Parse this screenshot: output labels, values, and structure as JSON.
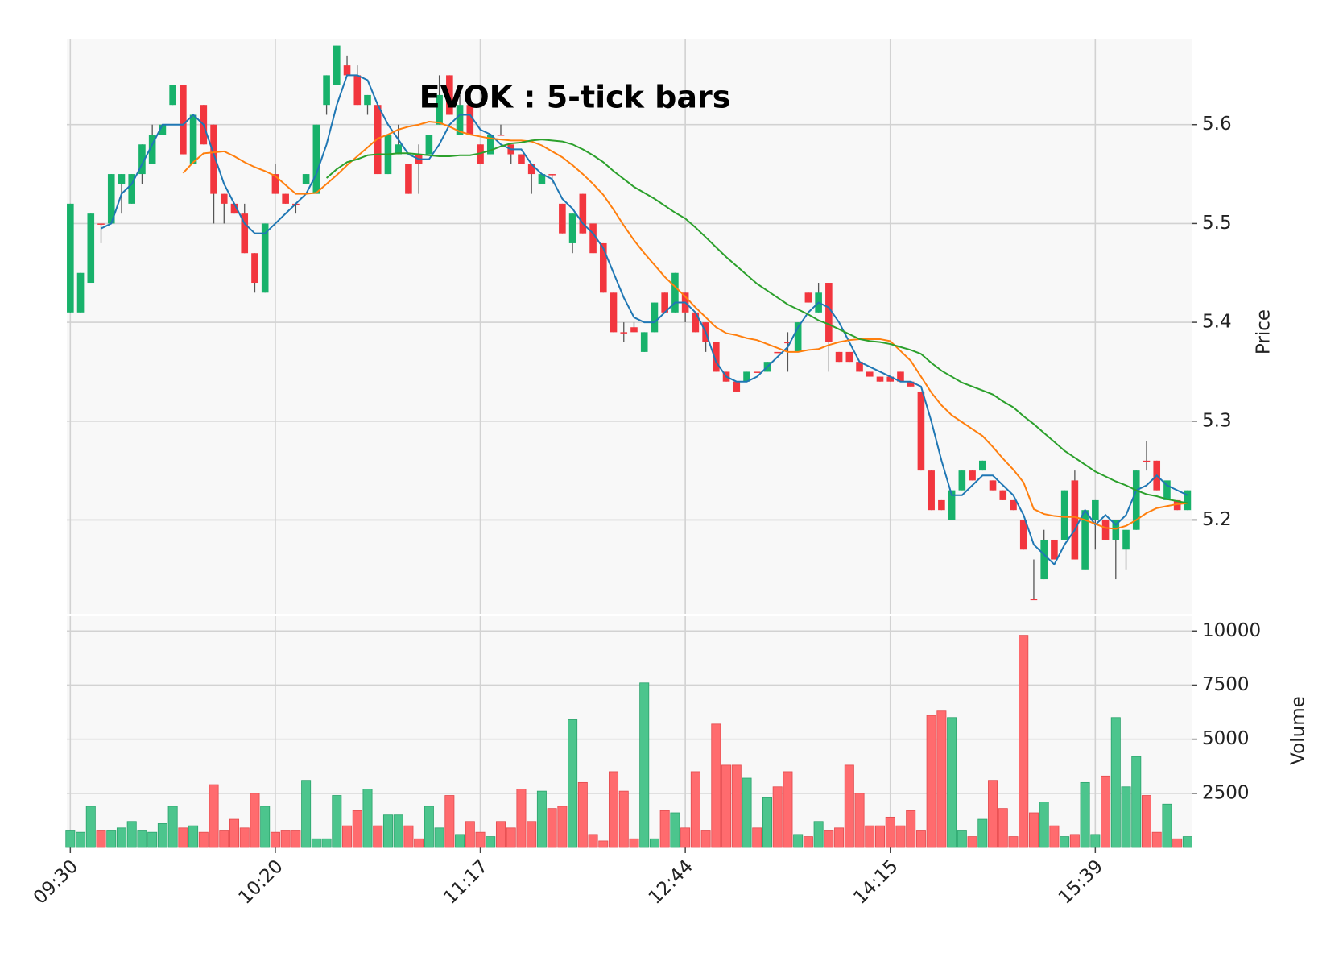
{
  "chart_data": [
    {
      "type": "candlestick",
      "title": "EVOK : 5-tick bars",
      "ylabel": "Price",
      "categories": [
        "09:30",
        null,
        null,
        null,
        null,
        null,
        null,
        null,
        null,
        null,
        null,
        null,
        null,
        null,
        null,
        null,
        null,
        null,
        null,
        null,
        "10:20",
        null,
        null,
        null,
        null,
        null,
        null,
        null,
        null,
        null,
        null,
        null,
        null,
        null,
        null,
        null,
        null,
        null,
        null,
        null,
        "11:17",
        null,
        null,
        null,
        null,
        null,
        null,
        null,
        null,
        null,
        null,
        null,
        null,
        null,
        null,
        null,
        null,
        null,
        null,
        null,
        "12:44",
        null,
        null,
        null,
        null,
        null,
        null,
        null,
        null,
        null,
        null,
        null,
        null,
        null,
        null,
        null,
        null,
        null,
        null,
        null,
        "14:15",
        null,
        null,
        null,
        null,
        null,
        null,
        null,
        null,
        null,
        null,
        null,
        null,
        null,
        null,
        null,
        null,
        null,
        null,
        null,
        "15:39",
        null,
        null,
        null,
        null,
        null,
        null,
        null,
        null,
        null
      ],
      "open": [
        5.41,
        5.41,
        5.44,
        5.5,
        5.5,
        5.54,
        5.52,
        5.55,
        5.56,
        5.59,
        5.62,
        5.64,
        5.56,
        5.62,
        5.6,
        5.53,
        5.52,
        5.51,
        5.47,
        5.43,
        5.55,
        5.53,
        5.52,
        5.54,
        5.53,
        5.62,
        5.64,
        5.66,
        5.65,
        5.62,
        5.62,
        5.55,
        5.57,
        5.56,
        5.57,
        5.57,
        5.6,
        5.65,
        5.59,
        5.62,
        5.58,
        5.57,
        5.59,
        5.58,
        5.57,
        5.56,
        5.54,
        5.55,
        5.52,
        5.48,
        5.53,
        5.5,
        5.48,
        5.43,
        5.39,
        5.395,
        5.37,
        5.39,
        5.43,
        5.41,
        5.43,
        5.41,
        5.4,
        5.38,
        5.35,
        5.34,
        5.34,
        5.35,
        5.35,
        5.37,
        5.38,
        5.37,
        5.43,
        5.41,
        5.44,
        5.37,
        5.37,
        5.36,
        5.35,
        5.345,
        5.345,
        5.35,
        5.34,
        5.33,
        5.25,
        5.22,
        5.2,
        5.23,
        5.25,
        5.25,
        5.24,
        5.23,
        5.22,
        5.2,
        5.12,
        5.14,
        5.18,
        5.18,
        5.24,
        5.15,
        5.2,
        5.2,
        5.18,
        5.17,
        5.19,
        5.26,
        5.26,
        5.22,
        5.22,
        5.21
      ],
      "high": [
        5.52,
        5.45,
        5.51,
        5.5,
        5.55,
        5.55,
        5.55,
        5.58,
        5.6,
        5.6,
        5.64,
        5.64,
        5.61,
        5.62,
        5.6,
        5.53,
        5.52,
        5.52,
        5.47,
        5.5,
        5.56,
        5.53,
        5.52,
        5.55,
        5.6,
        5.65,
        5.68,
        5.67,
        5.66,
        5.63,
        5.62,
        5.59,
        5.6,
        5.56,
        5.58,
        5.59,
        5.65,
        5.65,
        5.63,
        5.62,
        5.58,
        5.59,
        5.6,
        5.58,
        5.57,
        5.56,
        5.55,
        5.55,
        5.52,
        5.51,
        5.53,
        5.5,
        5.48,
        5.43,
        5.4,
        5.4,
        5.39,
        5.42,
        5.43,
        5.45,
        5.43,
        5.41,
        5.4,
        5.38,
        5.35,
        5.34,
        5.35,
        5.35,
        5.36,
        5.37,
        5.39,
        5.4,
        5.43,
        5.44,
        5.44,
        5.37,
        5.37,
        5.36,
        5.35,
        5.345,
        5.345,
        5.35,
        5.34,
        5.33,
        5.25,
        5.22,
        5.23,
        5.25,
        5.25,
        5.26,
        5.24,
        5.23,
        5.22,
        5.2,
        5.16,
        5.19,
        5.18,
        5.23,
        5.25,
        5.21,
        5.22,
        5.2,
        5.2,
        5.19,
        5.25,
        5.28,
        5.26,
        5.24,
        5.22,
        5.23
      ],
      "low": [
        5.41,
        5.41,
        5.44,
        5.48,
        5.5,
        5.51,
        5.52,
        5.54,
        5.56,
        5.59,
        5.62,
        5.57,
        5.56,
        5.58,
        5.5,
        5.5,
        5.51,
        5.47,
        5.43,
        5.43,
        5.53,
        5.52,
        5.51,
        5.54,
        5.53,
        5.61,
        5.64,
        5.65,
        5.62,
        5.61,
        5.55,
        5.55,
        5.57,
        5.53,
        5.53,
        5.57,
        5.6,
        5.61,
        5.59,
        5.59,
        5.56,
        5.57,
        5.59,
        5.56,
        5.56,
        5.53,
        5.54,
        5.54,
        5.49,
        5.47,
        5.49,
        5.47,
        5.43,
        5.39,
        5.38,
        5.39,
        5.37,
        5.39,
        5.41,
        5.41,
        5.4,
        5.39,
        5.37,
        5.35,
        5.34,
        5.33,
        5.34,
        5.35,
        5.35,
        5.37,
        5.35,
        5.37,
        5.42,
        5.41,
        5.35,
        5.36,
        5.36,
        5.35,
        5.345,
        5.34,
        5.34,
        5.34,
        5.335,
        5.25,
        5.21,
        5.21,
        5.2,
        5.23,
        5.24,
        5.25,
        5.23,
        5.22,
        5.21,
        5.17,
        5.12,
        5.14,
        5.16,
        5.18,
        5.16,
        5.15,
        5.17,
        5.18,
        5.14,
        5.15,
        5.19,
        5.25,
        5.23,
        5.22,
        5.21,
        5.21
      ],
      "close": [
        5.52,
        5.45,
        5.51,
        5.5,
        5.55,
        5.55,
        5.55,
        5.58,
        5.59,
        5.6,
        5.64,
        5.57,
        5.61,
        5.58,
        5.53,
        5.52,
        5.51,
        5.47,
        5.44,
        5.5,
        5.53,
        5.52,
        5.52,
        5.55,
        5.6,
        5.65,
        5.68,
        5.65,
        5.62,
        5.63,
        5.55,
        5.59,
        5.58,
        5.53,
        5.56,
        5.59,
        5.63,
        5.61,
        5.62,
        5.59,
        5.56,
        5.59,
        5.59,
        5.57,
        5.56,
        5.55,
        5.55,
        5.55,
        5.49,
        5.51,
        5.49,
        5.47,
        5.43,
        5.39,
        5.39,
        5.39,
        5.39,
        5.42,
        5.41,
        5.45,
        5.41,
        5.39,
        5.38,
        5.35,
        5.34,
        5.33,
        5.35,
        5.35,
        5.36,
        5.37,
        5.38,
        5.4,
        5.42,
        5.43,
        5.38,
        5.36,
        5.36,
        5.35,
        5.345,
        5.34,
        5.34,
        5.34,
        5.335,
        5.25,
        5.21,
        5.21,
        5.23,
        5.25,
        5.24,
        5.26,
        5.23,
        5.22,
        5.21,
        5.17,
        5.12,
        5.18,
        5.16,
        5.23,
        5.16,
        5.21,
        5.22,
        5.18,
        5.2,
        5.19,
        5.25,
        5.26,
        5.23,
        5.24,
        5.21,
        5.23
      ],
      "up_color": "#18b26b",
      "down_color": "#f2363e",
      "series": [
        {
          "color": "#1f77b4",
          "values": [
            null,
            null,
            null,
            5.495,
            5.5,
            5.53,
            5.54,
            5.56,
            5.58,
            5.6,
            5.6,
            5.6,
            5.61,
            5.6,
            5.57,
            5.54,
            5.52,
            5.5,
            5.49,
            5.49,
            5.5,
            5.51,
            5.52,
            5.53,
            5.55,
            5.58,
            5.62,
            5.65,
            5.65,
            5.645,
            5.62,
            5.6,
            5.585,
            5.57,
            5.565,
            5.565,
            5.58,
            5.6,
            5.61,
            5.61,
            5.595,
            5.59,
            5.58,
            5.575,
            5.575,
            5.56,
            5.55,
            5.545,
            5.525,
            5.515,
            5.5,
            5.49,
            5.475,
            5.45,
            5.425,
            5.405,
            5.4,
            5.4,
            5.41,
            5.42,
            5.42,
            5.41,
            5.39,
            5.36,
            5.345,
            5.34,
            5.34,
            5.345,
            5.355,
            5.365,
            5.375,
            5.395,
            5.41,
            5.42,
            5.415,
            5.4,
            5.38,
            5.36,
            5.355,
            5.35,
            5.345,
            5.34,
            5.34,
            5.335,
            5.3,
            5.26,
            5.225,
            5.225,
            5.235,
            5.245,
            5.245,
            5.235,
            5.225,
            5.205,
            5.175,
            5.165,
            5.155,
            5.175,
            5.19,
            5.21,
            5.195,
            5.205,
            5.195,
            5.205,
            5.23,
            5.235,
            5.245,
            5.235,
            5.23,
            5.225
          ]
        },
        {
          "color": "#ff7f0e",
          "values": [
            null,
            null,
            null,
            null,
            null,
            null,
            null,
            null,
            null,
            null,
            null,
            5.551,
            5.562,
            5.571,
            5.572,
            5.573,
            5.568,
            5.562,
            5.557,
            5.553,
            5.548,
            5.539,
            5.53,
            5.53,
            5.531,
            5.54,
            5.549,
            5.559,
            5.568,
            5.577,
            5.586,
            5.59,
            5.595,
            5.598,
            5.6,
            5.603,
            5.602,
            5.598,
            5.593,
            5.59,
            5.588,
            5.586,
            5.585,
            5.584,
            5.584,
            5.583,
            5.579,
            5.573,
            5.567,
            5.559,
            5.55,
            5.54,
            5.529,
            5.514,
            5.498,
            5.483,
            5.47,
            5.458,
            5.446,
            5.436,
            5.426,
            5.415,
            5.405,
            5.395,
            5.389,
            5.387,
            5.384,
            5.382,
            5.378,
            5.374,
            5.37,
            5.37,
            5.372,
            5.373,
            5.377,
            5.38,
            5.382,
            5.383,
            5.383,
            5.383,
            5.381,
            5.371,
            5.361,
            5.345,
            5.329,
            5.316,
            5.306,
            5.299,
            5.292,
            5.285,
            5.274,
            5.262,
            5.251,
            5.238,
            5.211,
            5.206,
            5.204,
            5.203,
            5.203,
            5.2,
            5.196,
            5.192,
            5.191,
            5.194,
            5.2,
            5.207,
            5.212,
            5.214,
            5.216,
            5.217
          ]
        },
        {
          "color": "#2ca02c",
          "values": [
            null,
            null,
            null,
            null,
            null,
            null,
            null,
            null,
            null,
            null,
            null,
            null,
            null,
            null,
            null,
            null,
            null,
            null,
            null,
            null,
            null,
            null,
            null,
            null,
            null,
            5.546,
            5.555,
            5.562,
            5.565,
            5.569,
            5.57,
            5.57,
            5.571,
            5.571,
            5.57,
            5.569,
            5.568,
            5.568,
            5.569,
            5.569,
            5.571,
            5.574,
            5.578,
            5.581,
            5.582,
            5.584,
            5.585,
            5.584,
            5.583,
            5.58,
            5.575,
            5.569,
            5.562,
            5.553,
            5.545,
            5.537,
            5.531,
            5.525,
            5.518,
            5.511,
            5.505,
            5.496,
            5.486,
            5.476,
            5.466,
            5.457,
            5.448,
            5.439,
            5.432,
            5.425,
            5.418,
            5.413,
            5.408,
            5.402,
            5.398,
            5.393,
            5.388,
            5.383,
            5.381,
            5.38,
            5.378,
            5.375,
            5.372,
            5.368,
            5.359,
            5.351,
            5.345,
            5.339,
            5.335,
            5.331,
            5.327,
            5.32,
            5.314,
            5.305,
            5.297,
            5.288,
            5.279,
            5.27,
            5.263,
            5.256,
            5.249,
            5.244,
            5.239,
            5.235,
            5.23,
            5.226,
            5.224,
            5.221,
            5.219,
            5.217
          ]
        }
      ],
      "ylim": [
        5.105,
        5.687
      ],
      "yticks": [
        5.2,
        5.3,
        5.4,
        5.5,
        5.6
      ],
      "grid": true
    },
    {
      "type": "bar",
      "ylabel": "Volume",
      "up_color": "#4cc58d",
      "down_color": "#ff6b6e",
      "values": [
        800,
        700,
        1900,
        800,
        800,
        900,
        1200,
        800,
        700,
        1100,
        1900,
        900,
        1000,
        700,
        2900,
        800,
        1300,
        900,
        2500,
        1900,
        700,
        800,
        800,
        3100,
        400,
        400,
        2400,
        1000,
        1700,
        2700,
        1000,
        1500,
        1500,
        1000,
        400,
        1900,
        900,
        2400,
        600,
        1200,
        700,
        500,
        1200,
        900,
        2700,
        1200,
        2600,
        1800,
        1900,
        5900,
        3000,
        600,
        300,
        3500,
        2600,
        400,
        7600,
        400,
        1700,
        1600,
        900,
        3500,
        800,
        5700,
        3800,
        3800,
        3200,
        900,
        2300,
        2800,
        3500,
        600,
        500,
        1200,
        800,
        900,
        3800,
        2500,
        1000,
        1000,
        1400,
        1000,
        1700,
        800,
        6100,
        6300,
        6000,
        800,
        500,
        1300,
        3100,
        1800,
        500,
        9800,
        1600,
        2100,
        1000,
        500,
        600,
        3000,
        600,
        3300,
        6000,
        2800,
        4200,
        2400,
        700,
        2000,
        400,
        500
      ],
      "ylim": [
        0,
        10680
      ],
      "yticks": [
        2500,
        5000,
        7500,
        10000
      ],
      "grid": true
    }
  ]
}
